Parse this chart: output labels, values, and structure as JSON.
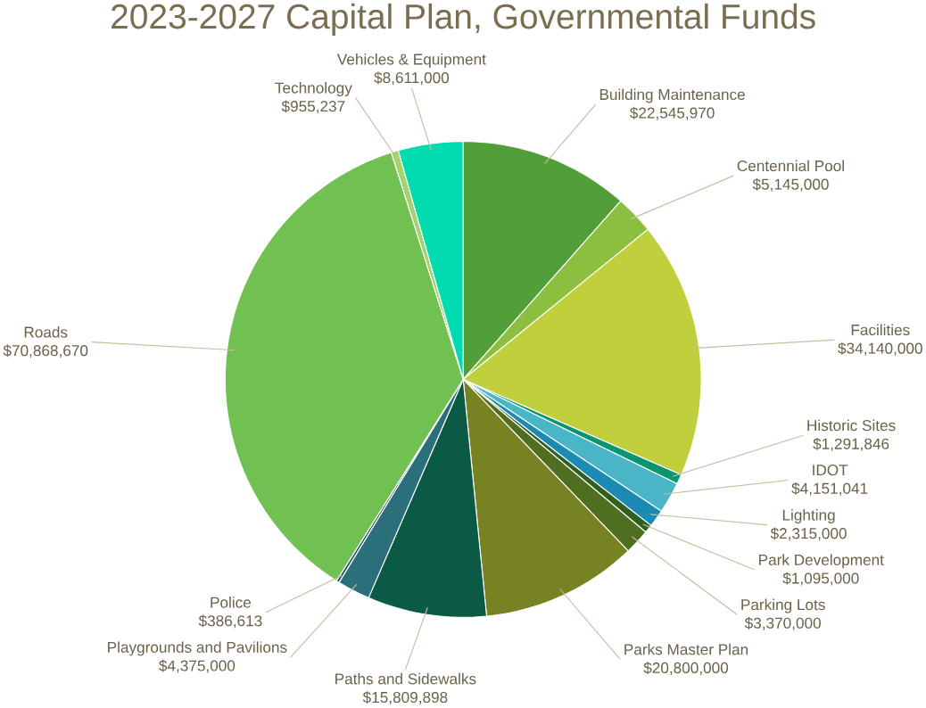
{
  "chart_data": {
    "type": "pie",
    "title": "2023-2027 Capital Plan, Governmental Funds",
    "categories": [
      "Building Maintenance",
      "Centennial Pool",
      "Facilities",
      "Historic Sites",
      "IDOT",
      "Lighting",
      "Park Development",
      "Parking Lots",
      "Parks Master Plan",
      "Paths and Sidewalks",
      "Playgrounds and Pavilions",
      "Police",
      "Roads",
      "Technology",
      "Vehicles & Equipment"
    ],
    "values": [
      22545970,
      5145000,
      34140000,
      1291846,
      4151041,
      2315000,
      1095000,
      3370000,
      20800000,
      15809898,
      4375000,
      386613,
      70868670,
      955237,
      8611000
    ],
    "value_labels": [
      "$22,545,970",
      "$5,145,000",
      "$34,140,000",
      "$1,291,846",
      "$4,151,041",
      "$2,315,000",
      "$1,095,000",
      "$3,370,000",
      "$20,800,000",
      "$15,809,898",
      "$4,375,000",
      "$386,613",
      "$70,868,670",
      "$955,237",
      "$8,611,000"
    ],
    "colors": [
      "#529e39",
      "#8cbf3f",
      "#c0cf3c",
      "#0a9470",
      "#4bb5c8",
      "#1b8ab5",
      "#2f6020",
      "#4f6e1f",
      "#778222",
      "#0b5a46",
      "#2a6f7a",
      "#1f4a5a",
      "#71c052",
      "#a3d36a",
      "#00dcb0"
    ]
  }
}
